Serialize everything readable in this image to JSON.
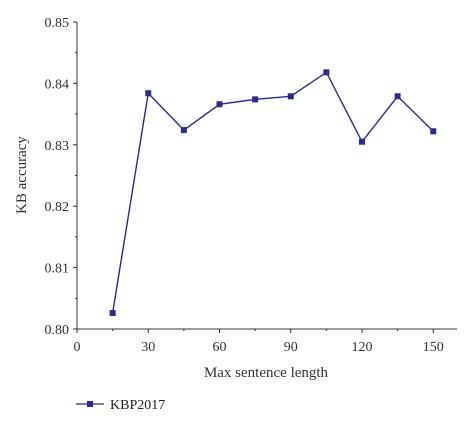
{
  "chart_data": {
    "type": "line",
    "xlabel": "Max sentence length",
    "ylabel": "KB accuracy",
    "xlim": [
      0,
      160
    ],
    "ylim": [
      0.8,
      0.85
    ],
    "x_ticks": [
      "0",
      "30",
      "60",
      "90",
      "120",
      "150"
    ],
    "y_ticks": [
      "0.80",
      "0.81",
      "0.82",
      "0.83",
      "0.84",
      "0.85"
    ],
    "grid": false,
    "legend_position": "bottom-left",
    "series": [
      {
        "name": "KBP2017",
        "color": "#2b2b8c",
        "marker": "square",
        "x": [
          15,
          30,
          45,
          60,
          75,
          90,
          105,
          120,
          135,
          150
        ],
        "y": [
          0.8026,
          0.8384,
          0.8324,
          0.8366,
          0.8374,
          0.8379,
          0.8418,
          0.8305,
          0.8379,
          0.8322
        ]
      }
    ]
  }
}
